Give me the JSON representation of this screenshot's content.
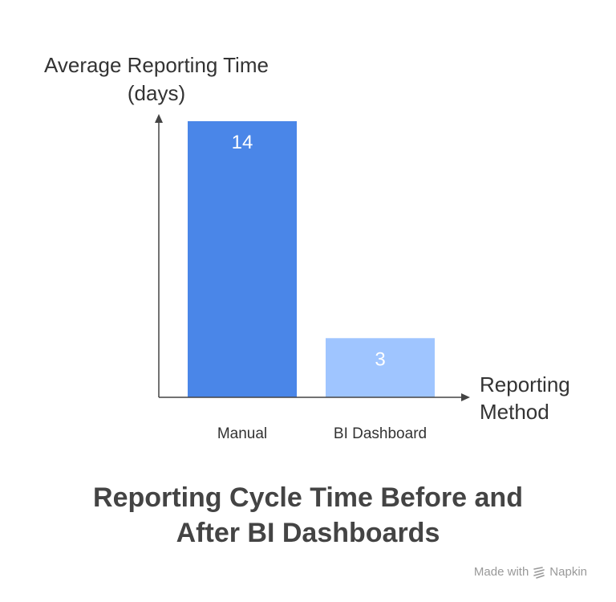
{
  "chart_data": {
    "type": "bar",
    "title_line1": "Reporting Cycle Time Before and",
    "title_line2": "After BI Dashboards",
    "ylabel_line1": "Average Reporting Time",
    "ylabel_line2": "(days)",
    "xlabel_line1": "Reporting",
    "xlabel_line2": "Method",
    "categories": [
      "Manual",
      "BI Dashboard"
    ],
    "values": [
      14,
      3
    ],
    "bar_colors": [
      "#4a86e8",
      "#9fc5ff"
    ],
    "data_label_color": "#ffffff",
    "axis_color": "#444444",
    "grid": false,
    "legend": "none"
  },
  "watermark": {
    "prefix": "Made with",
    "brand": "Napkin",
    "icon": "napkin-logo-icon"
  }
}
